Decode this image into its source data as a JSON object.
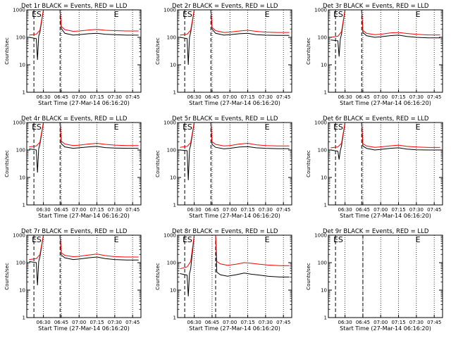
{
  "chart_data": [
    {
      "type": "line",
      "title": "Det 1r BLACK = Events, RED = LLD",
      "xlabel": "Start Time (27-Mar-14 06:16:20)",
      "ylabel": "Counts/sec",
      "yscale": "log",
      "ylim": [
        1,
        1000
      ],
      "xlim": [
        "06:16",
        "07:52"
      ],
      "xticks": [
        "06:30",
        "06:45",
        "07:00",
        "07:15",
        "07:30",
        "07:45"
      ],
      "yticks": [
        "1",
        "10",
        "100",
        "1000"
      ],
      "markers": [
        {
          "label": "E",
          "x": "06:22"
        },
        {
          "label": "S",
          "x": "06:26"
        },
        {
          "label": "E",
          "x": "07:31"
        }
      ],
      "series": [
        {
          "name": "Events",
          "color": "#000000",
          "x": [
            "06:18",
            "06:24",
            "06:25",
            "06:26",
            "06:27",
            "06:30",
            "06:35",
            "06:44",
            "06:45",
            "06:48",
            "06:55",
            "07:00",
            "07:08",
            "07:15",
            "07:22",
            "07:30",
            "07:40",
            "07:50"
          ],
          "values": [
            100,
            90,
            15,
            110,
            150,
            1000,
            1000,
            1000,
            210,
            140,
            120,
            125,
            135,
            140,
            130,
            125,
            120,
            120
          ]
        },
        {
          "name": "LLD",
          "color": "#ff0000",
          "x": [
            "06:18",
            "06:24",
            "06:27",
            "06:30",
            "06:35",
            "06:44",
            "06:45",
            "06:48",
            "06:55",
            "07:00",
            "07:08",
            "07:15",
            "07:22",
            "07:30",
            "07:40",
            "07:50"
          ],
          "values": [
            120,
            130,
            180,
            1000,
            1000,
            1000,
            250,
            190,
            165,
            170,
            185,
            195,
            180,
            175,
            170,
            170
          ]
        }
      ]
    },
    {
      "type": "line",
      "title": "Det 2r BLACK = Events, RED = LLD",
      "xlabel": "Start Time (27-Mar-14 06:16:20)",
      "ylabel": "Counts/sec",
      "yscale": "log",
      "ylim": [
        1,
        1000
      ],
      "xlim": [
        "06:16",
        "07:52"
      ],
      "xticks": [
        "06:30",
        "06:45",
        "07:00",
        "07:15",
        "07:30",
        "07:45"
      ],
      "yticks": [
        "1",
        "10",
        "100",
        "1000"
      ],
      "markers": [
        {
          "label": "E",
          "x": "06:22"
        },
        {
          "label": "S",
          "x": "06:26"
        },
        {
          "label": "E",
          "x": "07:31"
        }
      ],
      "series": [
        {
          "name": "Events",
          "color": "#000000",
          "x": [
            "06:18",
            "06:24",
            "06:25",
            "06:26",
            "06:27",
            "06:30",
            "06:35",
            "06:44",
            "06:45",
            "06:48",
            "06:55",
            "07:00",
            "07:08",
            "07:15",
            "07:22",
            "07:30",
            "07:40",
            "07:50"
          ],
          "values": [
            100,
            90,
            10,
            100,
            150,
            1000,
            1000,
            1000,
            200,
            140,
            120,
            125,
            135,
            140,
            125,
            120,
            118,
            118
          ]
        },
        {
          "name": "LLD",
          "color": "#ff0000",
          "x": [
            "06:18",
            "06:24",
            "06:27",
            "06:30",
            "06:35",
            "06:44",
            "06:45",
            "06:48",
            "06:55",
            "07:00",
            "07:08",
            "07:15",
            "07:22",
            "07:30",
            "07:40",
            "07:50"
          ],
          "values": [
            120,
            130,
            180,
            1000,
            1000,
            1000,
            230,
            175,
            150,
            155,
            170,
            180,
            165,
            155,
            150,
            150
          ]
        }
      ]
    },
    {
      "type": "line",
      "title": "Det 3r BLACK = Events, RED = LLD",
      "xlabel": "Start Time (27-Mar-14 06:16:20)",
      "ylabel": "Counts/sec",
      "yscale": "log",
      "ylim": [
        1,
        1000
      ],
      "xlim": [
        "06:16",
        "07:52"
      ],
      "xticks": [
        "06:30",
        "06:45",
        "07:00",
        "07:15",
        "07:30",
        "07:45"
      ],
      "yticks": [
        "1",
        "10",
        "100",
        "1000"
      ],
      "markers": [
        {
          "label": "E",
          "x": "06:22"
        },
        {
          "label": "S",
          "x": "06:26"
        },
        {
          "label": "E",
          "x": "07:31"
        }
      ],
      "series": [
        {
          "name": "Events",
          "color": "#000000",
          "x": [
            "06:18",
            "06:24",
            "06:25",
            "06:26",
            "06:27",
            "06:30",
            "06:35",
            "06:44",
            "06:45",
            "06:48",
            "06:55",
            "07:00",
            "07:08",
            "07:15",
            "07:22",
            "07:30",
            "07:40",
            "07:50"
          ],
          "values": [
            80,
            75,
            20,
            85,
            130,
            1000,
            1000,
            1000,
            150,
            115,
            100,
            105,
            115,
            120,
            108,
            100,
            96,
            96
          ]
        },
        {
          "name": "LLD",
          "color": "#ff0000",
          "x": [
            "06:18",
            "06:24",
            "06:27",
            "06:30",
            "06:35",
            "06:44",
            "06:45",
            "06:48",
            "06:55",
            "07:00",
            "07:08",
            "07:15",
            "07:22",
            "07:30",
            "07:40",
            "07:50"
          ],
          "values": [
            100,
            110,
            160,
            1000,
            1000,
            1000,
            180,
            140,
            125,
            130,
            145,
            150,
            138,
            128,
            122,
            122
          ]
        }
      ]
    },
    {
      "type": "line",
      "title": "Det 4r BLACK = Events, RED = LLD",
      "xlabel": "Start Time (27-Mar-14 06:16:20)",
      "ylabel": "Counts/sec",
      "yscale": "log",
      "ylim": [
        1,
        1000
      ],
      "xlim": [
        "06:16",
        "07:52"
      ],
      "xticks": [
        "06:30",
        "06:45",
        "07:00",
        "07:15",
        "07:30",
        "07:45"
      ],
      "yticks": [
        "1",
        "10",
        "100",
        "1000"
      ],
      "markers": [
        {
          "label": "E",
          "x": "06:22"
        },
        {
          "label": "S",
          "x": "06:26"
        },
        {
          "label": "E",
          "x": "07:31"
        }
      ],
      "series": [
        {
          "name": "Events",
          "color": "#000000",
          "x": [
            "06:18",
            "06:24",
            "06:25",
            "06:26",
            "06:27",
            "06:30",
            "06:35",
            "06:44",
            "06:45",
            "06:48",
            "06:55",
            "07:00",
            "07:08",
            "07:15",
            "07:22",
            "07:30",
            "07:40",
            "07:50"
          ],
          "values": [
            110,
            100,
            15,
            110,
            160,
            1000,
            1000,
            1000,
            170,
            130,
            115,
            120,
            130,
            135,
            122,
            118,
            115,
            115
          ]
        },
        {
          "name": "LLD",
          "color": "#ff0000",
          "x": [
            "06:18",
            "06:24",
            "06:27",
            "06:30",
            "06:35",
            "06:44",
            "06:45",
            "06:48",
            "06:55",
            "07:00",
            "07:08",
            "07:15",
            "07:22",
            "07:30",
            "07:40",
            "07:50"
          ],
          "values": [
            130,
            140,
            190,
            1000,
            1000,
            1000,
            210,
            165,
            145,
            150,
            165,
            175,
            160,
            150,
            145,
            145
          ]
        }
      ]
    },
    {
      "type": "line",
      "title": "Det 5r BLACK = Events, RED = LLD",
      "xlabel": "Start Time (27-Mar-14 06:16:20)",
      "ylabel": "Counts/sec",
      "yscale": "log",
      "ylim": [
        1,
        1000
      ],
      "xlim": [
        "06:16",
        "07:52"
      ],
      "xticks": [
        "06:30",
        "06:45",
        "07:00",
        "07:15",
        "07:30",
        "07:45"
      ],
      "yticks": [
        "1",
        "10",
        "100",
        "1000"
      ],
      "markers": [
        {
          "label": "E",
          "x": "06:22"
        },
        {
          "label": "S",
          "x": "06:26"
        },
        {
          "label": "E",
          "x": "07:31"
        }
      ],
      "series": [
        {
          "name": "Events",
          "color": "#000000",
          "x": [
            "06:18",
            "06:24",
            "06:25",
            "06:26",
            "06:27",
            "06:30",
            "06:35",
            "06:44",
            "06:45",
            "06:48",
            "06:55",
            "07:00",
            "07:08",
            "07:15",
            "07:22",
            "07:30",
            "07:40",
            "07:50"
          ],
          "values": [
            100,
            95,
            8,
            105,
            150,
            1000,
            1000,
            1000,
            160,
            125,
            110,
            115,
            128,
            132,
            120,
            115,
            112,
            112
          ]
        },
        {
          "name": "LLD",
          "color": "#ff0000",
          "x": [
            "06:18",
            "06:24",
            "06:27",
            "06:30",
            "06:35",
            "06:44",
            "06:45",
            "06:48",
            "06:55",
            "07:00",
            "07:08",
            "07:15",
            "07:22",
            "07:30",
            "07:40",
            "07:50"
          ],
          "values": [
            125,
            135,
            185,
            1000,
            1000,
            1000,
            200,
            160,
            140,
            145,
            165,
            175,
            155,
            145,
            140,
            140
          ]
        }
      ]
    },
    {
      "type": "line",
      "title": "Det 6r BLACK = Events, RED = LLD",
      "xlabel": "Start Time (27-Mar-14 06:16:20)",
      "ylabel": "Counts/sec",
      "yscale": "log",
      "ylim": [
        1,
        1000
      ],
      "xlim": [
        "06:16",
        "07:52"
      ],
      "xticks": [
        "06:30",
        "06:45",
        "07:00",
        "07:15",
        "07:30",
        "07:45"
      ],
      "yticks": [
        "1",
        "10",
        "100",
        "1000"
      ],
      "markers": [
        {
          "label": "E",
          "x": "06:22"
        },
        {
          "label": "S",
          "x": "06:26"
        },
        {
          "label": "E",
          "x": "07:31"
        }
      ],
      "series": [
        {
          "name": "Events",
          "color": "#000000",
          "x": [
            "06:18",
            "06:24",
            "06:25",
            "06:26",
            "06:27",
            "06:30",
            "06:35",
            "06:44",
            "06:45",
            "06:48",
            "06:55",
            "07:00",
            "07:08",
            "07:15",
            "07:22",
            "07:30",
            "07:40",
            "07:50"
          ],
          "values": [
            100,
            90,
            45,
            95,
            140,
            1000,
            1000,
            1000,
            140,
            115,
            100,
            105,
            115,
            120,
            108,
            102,
            100,
            100
          ]
        },
        {
          "name": "LLD",
          "color": "#ff0000",
          "x": [
            "06:18",
            "06:24",
            "06:27",
            "06:30",
            "06:35",
            "06:44",
            "06:45",
            "06:48",
            "06:55",
            "07:00",
            "07:08",
            "07:15",
            "07:22",
            "07:30",
            "07:40",
            "07:50"
          ],
          "values": [
            120,
            130,
            175,
            1000,
            1000,
            1000,
            170,
            140,
            125,
            130,
            142,
            150,
            135,
            128,
            124,
            124
          ]
        }
      ]
    },
    {
      "type": "line",
      "title": "Det 7r BLACK = Events, RED = LLD",
      "xlabel": "Start Time (27-Mar-14 06:16:20)",
      "ylabel": "Counts/sec",
      "yscale": "log",
      "ylim": [
        1,
        1000
      ],
      "xlim": [
        "06:16",
        "07:52"
      ],
      "xticks": [
        "06:30",
        "06:45",
        "07:00",
        "07:15",
        "07:30",
        "07:45"
      ],
      "yticks": [
        "1",
        "10",
        "100",
        "1000"
      ],
      "markers": [
        {
          "label": "E",
          "x": "06:22"
        },
        {
          "label": "S",
          "x": "06:26"
        },
        {
          "label": "E",
          "x": "07:31"
        }
      ],
      "series": [
        {
          "name": "Events",
          "color": "#000000",
          "x": [
            "06:18",
            "06:24",
            "06:25",
            "06:26",
            "06:27",
            "06:30",
            "06:35",
            "06:44",
            "06:45",
            "06:48",
            "06:55",
            "07:00",
            "07:08",
            "07:15",
            "07:22",
            "07:30",
            "07:40",
            "07:50"
          ],
          "values": [
            110,
            100,
            15,
            110,
            160,
            1000,
            1000,
            1000,
            190,
            150,
            130,
            135,
            150,
            160,
            140,
            130,
            125,
            125
          ]
        },
        {
          "name": "LLD",
          "color": "#ff0000",
          "x": [
            "06:18",
            "06:24",
            "06:27",
            "06:30",
            "06:35",
            "06:44",
            "06:45",
            "06:48",
            "06:55",
            "07:00",
            "07:08",
            "07:15",
            "07:22",
            "07:30",
            "07:40",
            "07:50"
          ],
          "values": [
            130,
            140,
            195,
            1000,
            1000,
            1000,
            230,
            185,
            165,
            170,
            190,
            205,
            180,
            165,
            160,
            160
          ]
        }
      ]
    },
    {
      "type": "line",
      "title": "Det 8r BLACK = Events, RED = LLD",
      "xlabel": "Start Time (27-Mar-14 06:16:20)",
      "ylabel": "Counts/sec",
      "yscale": "log",
      "ylim": [
        1,
        1000
      ],
      "xlim": [
        "06:16",
        "07:52"
      ],
      "xticks": [
        "06:30",
        "06:45",
        "07:00",
        "07:15",
        "07:30",
        "07:45"
      ],
      "yticks": [
        "1",
        "10",
        "100",
        "1000"
      ],
      "markers": [
        {
          "label": "E",
          "x": "06:22"
        },
        {
          "label": "S",
          "x": "06:26"
        },
        {
          "label": "E",
          "x": "07:31"
        }
      ],
      "series": [
        {
          "name": "Events",
          "color": "#000000",
          "x": [
            "06:18",
            "06:24",
            "06:25",
            "06:26",
            "06:27",
            "06:30",
            "06:35",
            "06:48",
            "06:49",
            "06:52",
            "06:58",
            "07:05",
            "07:12",
            "07:18",
            "07:25",
            "07:32",
            "07:42",
            "07:50"
          ],
          "values": [
            40,
            35,
            6,
            40,
            60,
            1000,
            1000,
            1000,
            45,
            36,
            32,
            36,
            42,
            38,
            35,
            32,
            30,
            30
          ]
        },
        {
          "name": "LLD",
          "color": "#ff0000",
          "x": [
            "06:18",
            "06:24",
            "06:27",
            "06:30",
            "06:35",
            "06:48",
            "06:49",
            "06:52",
            "06:58",
            "07:05",
            "07:12",
            "07:18",
            "07:25",
            "07:32",
            "07:42",
            "07:50"
          ],
          "values": [
            60,
            70,
            110,
            1000,
            1000,
            1000,
            110,
            90,
            80,
            88,
            100,
            95,
            88,
            82,
            78,
            78
          ]
        }
      ]
    },
    {
      "type": "line",
      "title": "Det 9r BLACK = Events, RED = LLD",
      "xlabel": "Start Time (27-Mar-14 06:16:20)",
      "ylabel": "Counts/sec",
      "yscale": "log",
      "ylim": [
        1,
        1000
      ],
      "xlim": [
        "06:16",
        "07:52"
      ],
      "xticks": [
        "06:30",
        "06:45",
        "07:00",
        "07:15",
        "07:30",
        "07:45"
      ],
      "yticks": [
        "1",
        "10",
        "100",
        "1000"
      ],
      "markers": [
        {
          "label": "E",
          "x": "06:22"
        },
        {
          "label": "S",
          "x": "06:26"
        },
        {
          "label": "E",
          "x": "07:31"
        }
      ],
      "series": []
    }
  ],
  "colors": {
    "events": "#000000",
    "lld": "#ff0000"
  }
}
